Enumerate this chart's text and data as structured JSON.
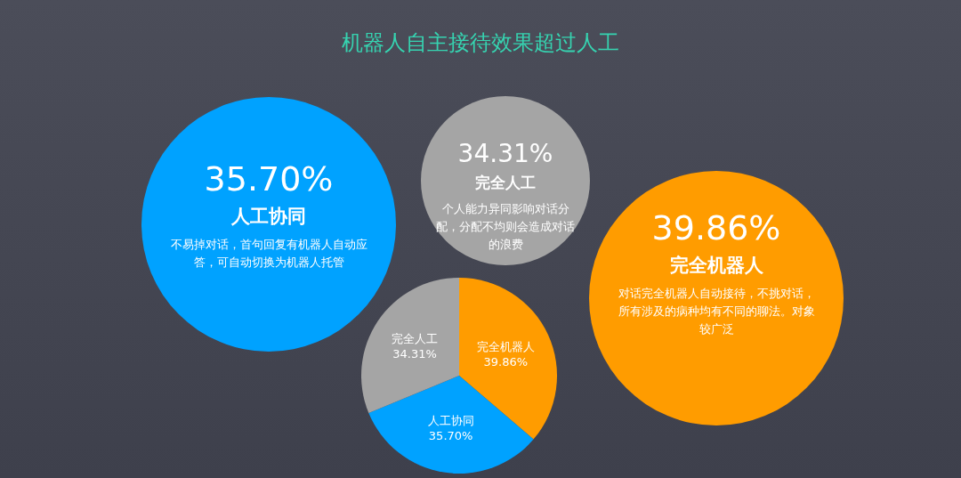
{
  "chart_data": {
    "type": "pie",
    "title": "机器人自主接待效果超过人工",
    "categories": [
      "完全机器人",
      "人工协同",
      "完全人工"
    ],
    "values": [
      39.86,
      35.7,
      34.31
    ],
    "value_labels": [
      "39.86%",
      "35.70%",
      "34.31%"
    ],
    "colors": [
      "#ff9c00",
      "#00a2ff",
      "#a5a5a5"
    ],
    "legend": false,
    "annotations": [
      "35.70%",
      "人工协同",
      "不易掉对话，首句回复有机器人自动应答，可自动切换为机器人托管",
      "34.31%",
      "完全人工",
      "个人能力异同影响对话分配，分配不均则会造成对话的浪费",
      "39.86%",
      "完全机器人",
      "对话完全机器人自动接待，不挑对话，所有涉及的病种均有不同的聊法。对象较广泛"
    ]
  }
}
